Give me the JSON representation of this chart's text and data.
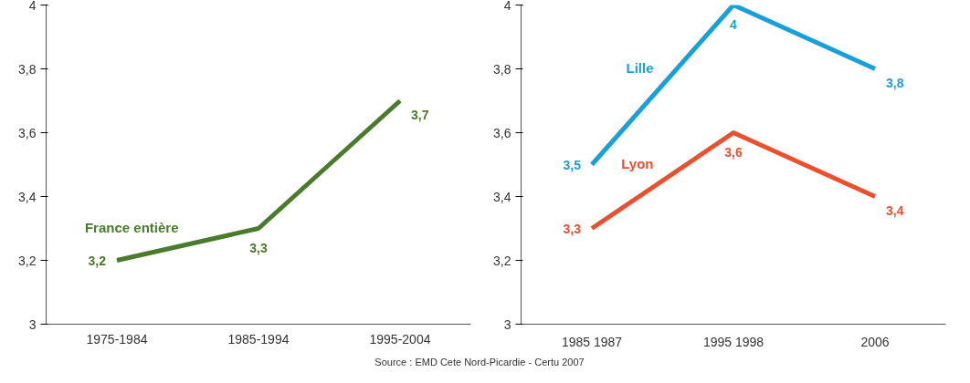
{
  "chart_data": [
    {
      "type": "line",
      "categories": [
        "1975-1984",
        "1985-1994",
        "1995-2004"
      ],
      "series": [
        {
          "name": "France entière",
          "color": "#4a7a2c",
          "values": [
            3.2,
            3.3,
            3.7
          ],
          "value_labels": [
            "3,2",
            "3,3",
            "3,7"
          ]
        }
      ],
      "ylim": [
        3,
        4
      ],
      "yticks": [
        {
          "value": 3,
          "label": "3"
        },
        {
          "value": 3.2,
          "label": "3,2"
        },
        {
          "value": 3.4,
          "label": "3,4"
        },
        {
          "value": 3.6,
          "label": "3,6"
        },
        {
          "value": 3.8,
          "label": "3,8"
        },
        {
          "value": 4,
          "label": "4"
        }
      ]
    },
    {
      "type": "line",
      "categories": [
        "1985 1987",
        "1995 1998",
        "2006"
      ],
      "series": [
        {
          "name": "Lyon",
          "color": "#e8502e",
          "values": [
            3.3,
            3.6,
            3.4
          ],
          "value_labels": [
            "3,3",
            "3,6",
            "3,4"
          ]
        },
        {
          "name": "Lille",
          "color": "#1aa0d8",
          "values": [
            3.5,
            4,
            3.8
          ],
          "value_labels": [
            "3,5",
            "4",
            "3,8"
          ]
        }
      ],
      "ylim": [
        3,
        4
      ],
      "yticks": [
        {
          "value": 3,
          "label": "3"
        },
        {
          "value": 3.2,
          "label": "3,2"
        },
        {
          "value": 3.4,
          "label": "3,4"
        },
        {
          "value": 3.6,
          "label": "3,6"
        },
        {
          "value": 3.8,
          "label": "3,8"
        },
        {
          "value": 4,
          "label": "4"
        }
      ],
      "annotations": [
        "Source : EMD Cete Nord-Picardie - Certu 2007"
      ]
    }
  ]
}
